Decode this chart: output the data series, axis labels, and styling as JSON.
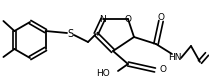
{
  "background_color": "#ffffff",
  "line_color": "#000000",
  "figsize": [
    2.09,
    0.84
  ],
  "dpi": 100,
  "xlim": [
    0,
    209
  ],
  "ylim": [
    0,
    84
  ]
}
